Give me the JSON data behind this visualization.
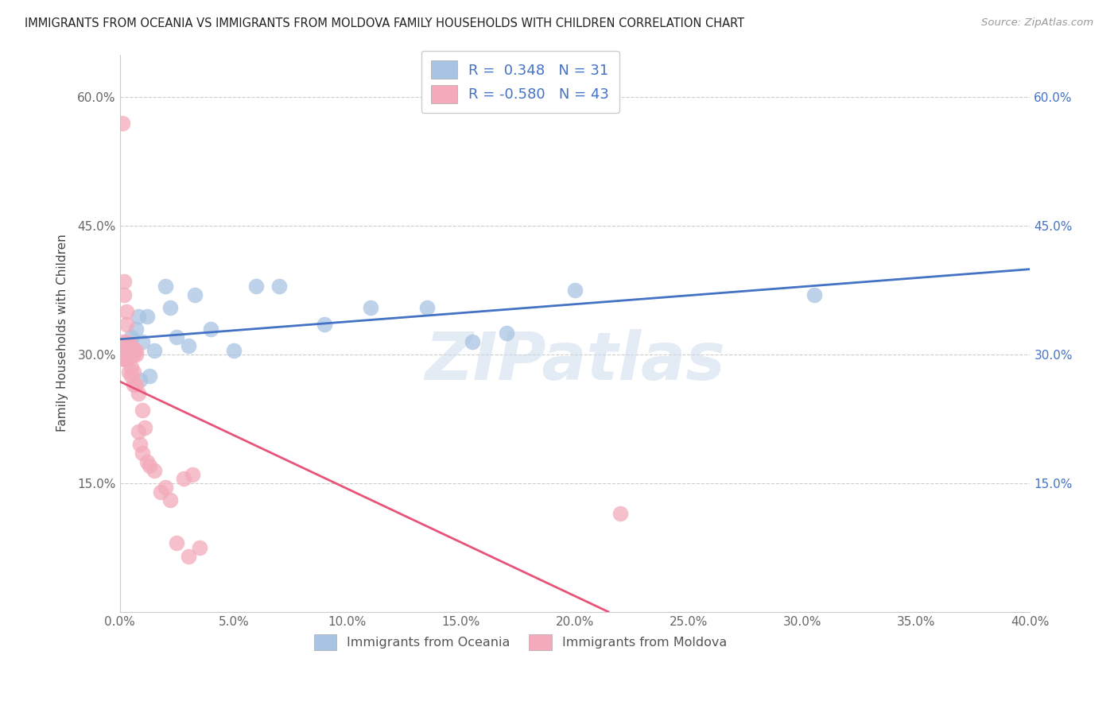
{
  "title": "IMMIGRANTS FROM OCEANIA VS IMMIGRANTS FROM MOLDOVA FAMILY HOUSEHOLDS WITH CHILDREN CORRELATION CHART",
  "source": "Source: ZipAtlas.com",
  "ylabel": "Family Households with Children",
  "xlim": [
    0.0,
    0.4
  ],
  "ylim": [
    0.0,
    0.65
  ],
  "oceania_color": "#a8c4e2",
  "moldova_color": "#f4aabb",
  "line_oceania_color": "#4472c4",
  "line_moldova_color": "#e8537a",
  "oceania_R": 0.348,
  "oceania_N": 31,
  "moldova_R": -0.58,
  "moldova_N": 43,
  "watermark": "ZIPatlas",
  "oceania_x": [
    0.001,
    0.002,
    0.003,
    0.004,
    0.004,
    0.005,
    0.005,
    0.006,
    0.007,
    0.008,
    0.009,
    0.01,
    0.012,
    0.013,
    0.015,
    0.02,
    0.022,
    0.025,
    0.03,
    0.033,
    0.04,
    0.05,
    0.06,
    0.07,
    0.09,
    0.11,
    0.135,
    0.155,
    0.17,
    0.2,
    0.305
  ],
  "oceania_y": [
    0.295,
    0.305,
    0.295,
    0.31,
    0.3,
    0.31,
    0.32,
    0.305,
    0.33,
    0.345,
    0.27,
    0.315,
    0.345,
    0.275,
    0.305,
    0.38,
    0.355,
    0.32,
    0.31,
    0.37,
    0.33,
    0.305,
    0.38,
    0.38,
    0.335,
    0.355,
    0.355,
    0.315,
    0.325,
    0.375,
    0.37
  ],
  "moldova_x": [
    0.001,
    0.001,
    0.001,
    0.002,
    0.002,
    0.002,
    0.002,
    0.003,
    0.003,
    0.003,
    0.003,
    0.004,
    0.004,
    0.004,
    0.005,
    0.005,
    0.005,
    0.005,
    0.006,
    0.006,
    0.006,
    0.007,
    0.007,
    0.007,
    0.008,
    0.008,
    0.009,
    0.01,
    0.01,
    0.011,
    0.012,
    0.013,
    0.015,
    0.018,
    0.02,
    0.022,
    0.025,
    0.028,
    0.03,
    0.032,
    0.035,
    0.22,
    0.001
  ],
  "moldova_y": [
    0.57,
    0.315,
    0.295,
    0.385,
    0.37,
    0.31,
    0.295,
    0.35,
    0.335,
    0.315,
    0.295,
    0.31,
    0.295,
    0.28,
    0.3,
    0.285,
    0.275,
    0.31,
    0.3,
    0.28,
    0.265,
    0.3,
    0.265,
    0.305,
    0.255,
    0.21,
    0.195,
    0.235,
    0.185,
    0.215,
    0.175,
    0.17,
    0.165,
    0.14,
    0.145,
    0.13,
    0.08,
    0.155,
    0.065,
    0.16,
    0.075,
    0.115,
    0.295
  ]
}
